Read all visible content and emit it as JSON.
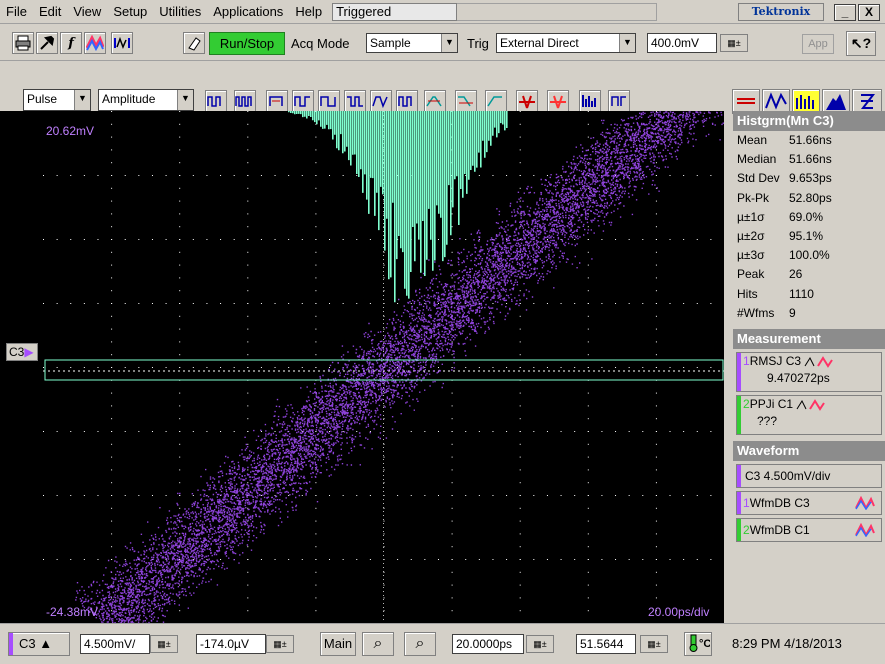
{
  "menu": {
    "items": [
      "File",
      "Edit",
      "View",
      "Setup",
      "Utilities",
      "Applications",
      "Help"
    ],
    "status": "Triggered",
    "brand": "Tektronix",
    "minimize": "_",
    "close": "X"
  },
  "toolbar": {
    "run_stop": "Run/Stop",
    "acq_mode_label": "Acq Mode",
    "acq_mode_value": "Sample",
    "trig_label": "Trig",
    "trig_value": "External Direct",
    "trig_level": "400.0mV",
    "app_button": "App",
    "help_button": "?"
  },
  "meas_toolbar": {
    "category": "Pulse",
    "type": "Amplitude"
  },
  "plot": {
    "top_label": "20.62mV",
    "bottom_label": "-24.38mV",
    "scale_label": "20.00ps/div",
    "channel_marker": "C3",
    "colors": {
      "waveform": "#a64dff",
      "histogram": "#80ffd0",
      "grid": "#ffffff"
    }
  },
  "histogram_panel": {
    "title": "Histgrm(Mn C3)",
    "stats": [
      {
        "k": "Mean",
        "v": "51.66ns"
      },
      {
        "k": "Median",
        "v": "51.66ns"
      },
      {
        "k": "Std Dev",
        "v": "9.653ps"
      },
      {
        "k": "Pk-Pk",
        "v": "52.80ps"
      },
      {
        "k": "µ±1σ",
        "v": "69.0%"
      },
      {
        "k": "µ±2σ",
        "v": "95.1%"
      },
      {
        "k": "µ±3σ",
        "v": "100.0%"
      },
      {
        "k": "Peak",
        "v": "26"
      },
      {
        "k": "Hits",
        "v": "1110"
      },
      {
        "k": "#Wfms",
        "v": "9"
      }
    ]
  },
  "measurement_panel": {
    "title": "Measurement",
    "items": [
      {
        "num": "1",
        "name": "RMSJ",
        "src": "C3",
        "value": "9.470272ps",
        "color": "#a64dff"
      },
      {
        "num": "2",
        "name": "PPJi",
        "src": "C1",
        "value": "???",
        "color": "#33cc33"
      }
    ]
  },
  "waveform_panel": {
    "title": "Waveform",
    "items": [
      {
        "num": "",
        "label": "C3 4.500mV/div",
        "color": "#a64dff"
      },
      {
        "num": "1",
        "label": "WfmDB C3",
        "color": "#a64dff"
      },
      {
        "num": "2",
        "label": "WfmDB C1",
        "color": "#33cc33"
      }
    ]
  },
  "bottom": {
    "channel": "C3",
    "scale": "4.500mV/",
    "offset": "-174.0µV",
    "timebase_label": "Main",
    "horiz_scale": "20.0000ps",
    "horiz_pos": "51.5644",
    "clock": "8:29 PM 4/18/2013"
  }
}
